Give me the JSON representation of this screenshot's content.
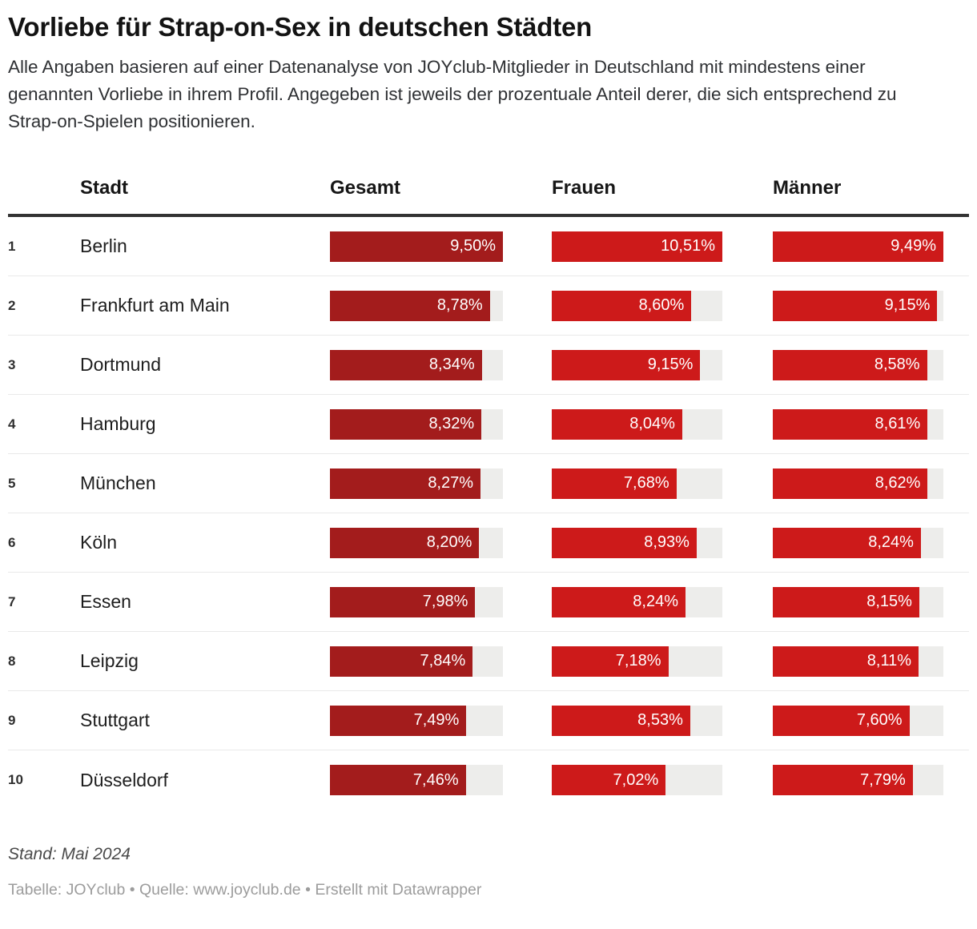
{
  "header": {
    "title": "Vorliebe für Strap-on-Sex in deutschen Städten",
    "description": "Alle Angaben basieren auf einer Datenanalyse von JOYclub-Mitglieder in Deutschland mit mindestens einer genannten Vorliebe in ihrem Profil. Angegeben ist jeweils der prozentuale Anteil derer, die sich entsprechend zu Strap-on-Spielen positionieren."
  },
  "chart_data": {
    "type": "table",
    "title": "Vorliebe für Strap-on-Sex in deutschen Städten",
    "columns": [
      "Stadt",
      "Gesamt",
      "Frauen",
      "Männer"
    ],
    "ranks": [
      "1",
      "2",
      "3",
      "4",
      "5",
      "6",
      "7",
      "8",
      "9",
      "10"
    ],
    "categories": [
      "Berlin",
      "Frankfurt am Main",
      "Dortmund",
      "Hamburg",
      "München",
      "Köln",
      "Essen",
      "Leipzig",
      "Stuttgart",
      "Düsseldorf"
    ],
    "series": [
      {
        "key": "gesamt",
        "name": "Gesamt",
        "color": "#a31c1c",
        "max": 9.5,
        "values": [
          9.5,
          8.78,
          8.34,
          8.32,
          8.27,
          8.2,
          7.98,
          7.84,
          7.49,
          7.46
        ],
        "labels": [
          "9,50%",
          "8,78%",
          "8,34%",
          "8,32%",
          "8,27%",
          "8,20%",
          "7,98%",
          "7,84%",
          "7,49%",
          "7,46%"
        ]
      },
      {
        "key": "frauen",
        "name": "Frauen",
        "color": "#cd1a1a",
        "max": 10.51,
        "values": [
          10.51,
          8.6,
          9.15,
          8.04,
          7.68,
          8.93,
          8.24,
          7.18,
          8.53,
          7.02
        ],
        "labels": [
          "10,51%",
          "8,60%",
          "9,15%",
          "8,04%",
          "7,68%",
          "8,93%",
          "8,24%",
          "7,18%",
          "8,53%",
          "7,02%"
        ]
      },
      {
        "key": "maenner",
        "name": "Männer",
        "color": "#cd1a1a",
        "max": 9.49,
        "values": [
          9.49,
          9.15,
          8.58,
          8.61,
          8.62,
          8.24,
          8.15,
          8.11,
          7.6,
          7.79
        ],
        "labels": [
          "9,49%",
          "9,15%",
          "8,58%",
          "8,61%",
          "8,62%",
          "8,24%",
          "8,15%",
          "8,11%",
          "7,60%",
          "7,79%"
        ]
      }
    ],
    "layout": {
      "legend": "none",
      "grid": "off",
      "track_color": "#ededeb"
    }
  },
  "footer": {
    "note": "Stand: Mai 2024",
    "attribution": {
      "table_label": "Tabelle:",
      "table_value": "JOYclub",
      "bullet1": "•",
      "source_label": "Quelle:",
      "source_value": "www.joyclub.de",
      "bullet2": "•",
      "created": "Erstellt mit Datawrapper"
    }
  }
}
